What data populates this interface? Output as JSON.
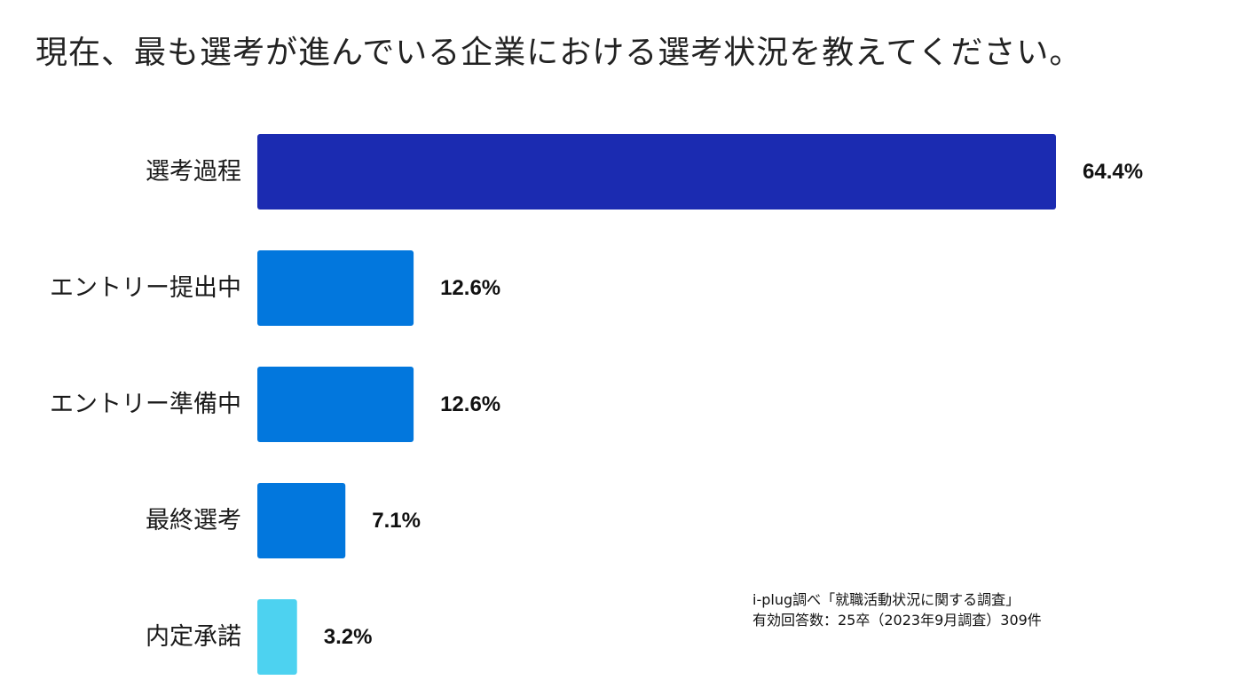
{
  "chart_data": {
    "type": "bar",
    "orientation": "horizontal",
    "title": "現在、最も選考が進んでいる企業における選考状況を教えてください。",
    "categories": [
      "選考過程",
      "エントリー提出中",
      "エントリー準備中",
      "最終選考",
      "内定承諾"
    ],
    "values": [
      64.4,
      12.6,
      12.6,
      7.1,
      3.2
    ],
    "value_labels": [
      "64.4%",
      "12.6%",
      "12.6%",
      "7.1%",
      "3.2%"
    ],
    "colors": [
      "#1b2bb1",
      "#0277dd",
      "#0277dd",
      "#0277dd",
      "#4dd2f0"
    ],
    "xlim": [
      0,
      64.4
    ],
    "grid": false,
    "legend": "none"
  },
  "source": {
    "line1": "i-plug調べ「就職活動状況に関する調査」",
    "line2": "有効回答数：25卒（2023年9月調査）309件"
  }
}
